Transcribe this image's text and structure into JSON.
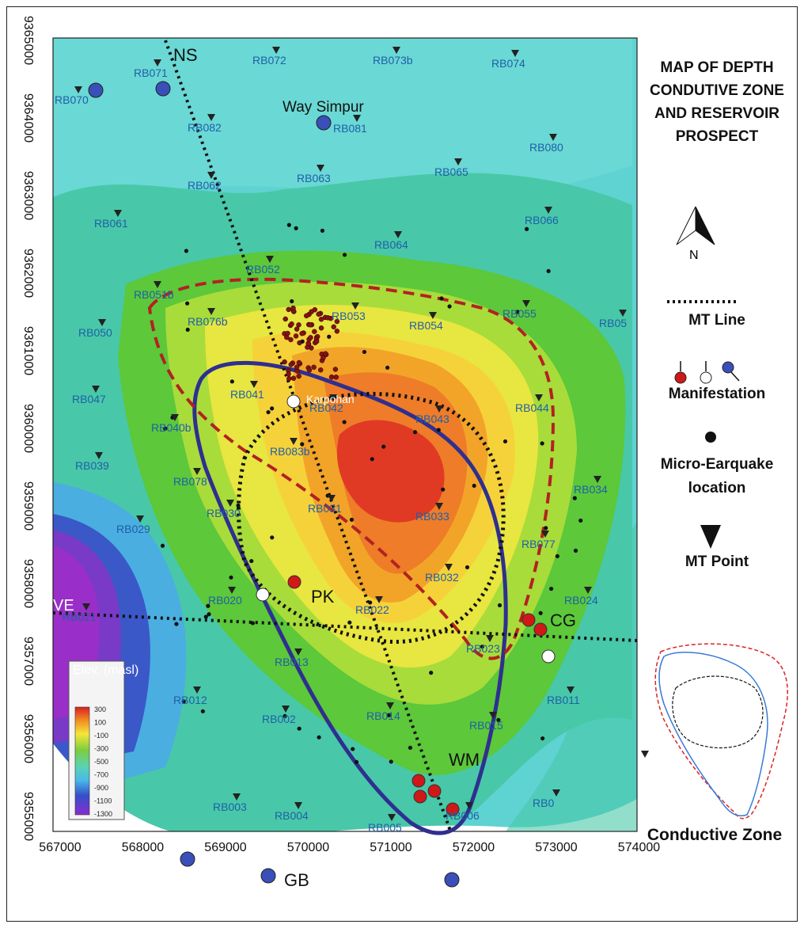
{
  "map": {
    "title": "MAP OF DEPTH CONDUTIVE ZONE AND RESERVOIR PROSPECT",
    "x_ticks": [
      "567000",
      "568000",
      "569000",
      "570000",
      "571000",
      "572000",
      "573000",
      "574000"
    ],
    "y_ticks": [
      "9355000",
      "9356000",
      "9357000",
      "9358000",
      "9359000",
      "9360000",
      "9361000",
      "9362000",
      "9363000",
      "9364000",
      "9365000"
    ],
    "colorbar": {
      "title": "Elev. (masl)",
      "labels": [
        "300",
        "100",
        "-100",
        "-300",
        "-500",
        "-700",
        "-900",
        "-1100",
        "-1300"
      ]
    },
    "place_names": [
      "NS",
      "Way Simpur",
      "Karpohan",
      "PK",
      "CG",
      "WM",
      "GB",
      "VE"
    ],
    "stations": [
      "RB071",
      "RB072",
      "RB073b",
      "RB074",
      "RB070",
      "RB082",
      "RB081",
      "RB080",
      "RB065",
      "RB063",
      "RB062",
      "RB061",
      "RB066",
      "RB064",
      "RB052",
      "RB051b",
      "RB053",
      "RB054",
      "RB055",
      "RB050",
      "RB076b",
      "RB05",
      "RB047",
      "RB041",
      "RB042",
      "RB043",
      "RB044",
      "RB040b",
      "RB083b",
      "RB039",
      "RB078",
      "RB031",
      "RB033",
      "RB034",
      "RB030",
      "RB029",
      "RB077",
      "RB032",
      "RB020",
      "RB022",
      "RB024",
      "RB021",
      "RB023",
      "RB013",
      "RB014",
      "RB015",
      "RB011",
      "RB012",
      "RB002",
      "RB003",
      "RB004",
      "RB005",
      "RB006",
      "RB0"
    ]
  },
  "legend": {
    "north_label": "N",
    "mt_line": "MT Line",
    "manifestation": "Manifestation",
    "micro_earthquake": "Micro-Earquake location",
    "mt_point": "MT Point",
    "conductive_zone": "Conductive Zone"
  },
  "colors": {
    "mt_line": "#111111",
    "reservoir_outline": "#b22222",
    "conductive_outline": "#2f2f8f",
    "hot_spring": "#d01818",
    "spring": "#ffffff",
    "cold_spring": "#3a4fb8"
  }
}
